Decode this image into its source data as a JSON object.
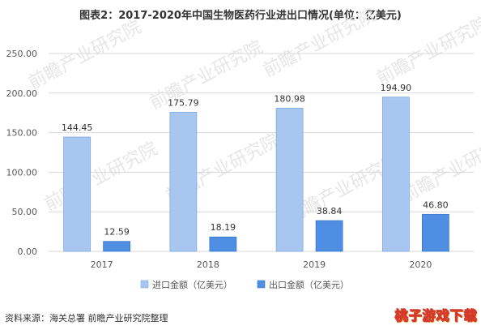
{
  "title": "图表2：2017-2020年中国生物医药行业进出口情况(单位：亿美元)",
  "source": "资料来源：海关总署 前瞻产业研究院整理",
  "watermark": {
    "text": "前瞻产业研究院",
    "stamp_text": "桃子游戏下载"
  },
  "colors": {
    "import": "#a7c7f1",
    "import_border": "#7ea9e0",
    "export": "#4e8fe4",
    "export_border": "#3c78c9",
    "grid": "#d9d9d9",
    "axis_text": "#595959",
    "watermark": "#e6e6e6"
  },
  "chart_data": {
    "type": "bar",
    "title": "图表2：2017-2020年中国生物医药行业进出口情况(单位：亿美元)",
    "xlabel": "",
    "ylabel": "",
    "categories": [
      "2017",
      "2018",
      "2019",
      "2020"
    ],
    "ylim": [
      0,
      250
    ],
    "yticks": [
      "0.00",
      "50.00",
      "100.00",
      "150.00",
      "200.00",
      "250.00"
    ],
    "grid": true,
    "legend_position": "bottom",
    "series": [
      {
        "name": "进口金额（亿美元）",
        "values": [
          144.45,
          175.79,
          180.98,
          194.9
        ],
        "labels": [
          "144.45",
          "175.79",
          "180.98",
          "194.90"
        ]
      },
      {
        "name": "出口金额（亿美元）",
        "values": [
          12.59,
          18.19,
          38.84,
          46.8
        ],
        "labels": [
          "12.59",
          "18.19",
          "38.84",
          "46.80"
        ]
      }
    ]
  }
}
